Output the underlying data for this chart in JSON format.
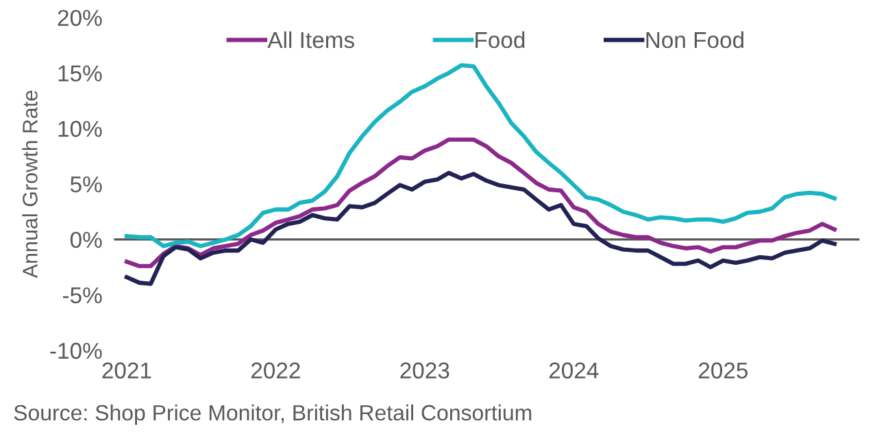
{
  "chart_data": {
    "type": "line",
    "ylabel": "Annual Growth Rate",
    "x": [
      "2021-01",
      "2021-02",
      "2021-03",
      "2021-04",
      "2021-05",
      "2021-06",
      "2021-07",
      "2021-08",
      "2021-09",
      "2021-10",
      "2021-11",
      "2021-12",
      "2022-01",
      "2022-02",
      "2022-03",
      "2022-04",
      "2022-05",
      "2022-06",
      "2022-07",
      "2022-08",
      "2022-09",
      "2022-10",
      "2022-11",
      "2022-12",
      "2023-01",
      "2023-02",
      "2023-03",
      "2023-04",
      "2023-05",
      "2023-06",
      "2023-07",
      "2023-08",
      "2023-09",
      "2023-10",
      "2023-11",
      "2023-12",
      "2024-01",
      "2024-02",
      "2024-03",
      "2024-04",
      "2024-05",
      "2024-06",
      "2024-07",
      "2024-08",
      "2024-09",
      "2024-10",
      "2024-11",
      "2024-12",
      "2025-01",
      "2025-02",
      "2025-03",
      "2025-04",
      "2025-05",
      "2025-06",
      "2025-07",
      "2025-08",
      "2025-09",
      "2025-10"
    ],
    "series": [
      {
        "name": "All Items",
        "color": "#8b2a8b",
        "values": [
          -2.0,
          -2.4,
          -2.4,
          -1.3,
          -0.6,
          -0.8,
          -1.4,
          -0.8,
          -0.6,
          -0.4,
          0.4,
          0.8,
          1.5,
          1.8,
          2.1,
          2.7,
          2.8,
          3.1,
          4.4,
          5.1,
          5.7,
          6.6,
          7.4,
          7.3,
          8.0,
          8.4,
          9.0,
          9.0,
          9.0,
          8.4,
          7.5,
          6.9,
          6.0,
          5.1,
          4.5,
          4.4,
          2.9,
          2.5,
          1.4,
          0.7,
          0.4,
          0.2,
          0.2,
          -0.3,
          -0.6,
          -0.8,
          -0.7,
          -1.1,
          -0.7,
          -0.7,
          -0.4,
          -0.1,
          -0.1,
          0.3,
          0.6,
          0.8,
          1.4,
          0.9
        ]
      },
      {
        "name": "Food",
        "color": "#1ab5c0",
        "values": [
          0.3,
          0.2,
          0.2,
          -0.6,
          -0.3,
          -0.2,
          -0.6,
          -0.3,
          0.0,
          0.4,
          1.2,
          2.4,
          2.7,
          2.7,
          3.3,
          3.5,
          4.3,
          5.7,
          7.8,
          9.3,
          10.6,
          11.6,
          12.4,
          13.3,
          13.8,
          14.5,
          15.0,
          15.7,
          15.6,
          13.8,
          12.3,
          10.5,
          9.3,
          7.9,
          6.9,
          6.0,
          4.9,
          3.8,
          3.6,
          3.1,
          2.5,
          2.2,
          1.8,
          2.0,
          1.9,
          1.7,
          1.8,
          1.8,
          1.6,
          1.9,
          2.4,
          2.5,
          2.8,
          3.8,
          4.1,
          4.2,
          4.1,
          3.7
        ]
      },
      {
        "name": "Non Food",
        "color": "#222255",
        "values": [
          -3.4,
          -3.9,
          -4.0,
          -1.5,
          -0.7,
          -0.9,
          -1.7,
          -1.2,
          -1.0,
          -1.0,
          0.0,
          -0.3,
          0.9,
          1.4,
          1.6,
          2.2,
          1.9,
          1.8,
          3.0,
          2.9,
          3.3,
          4.1,
          4.9,
          4.5,
          5.2,
          5.4,
          6.0,
          5.5,
          5.9,
          5.3,
          4.9,
          4.7,
          4.5,
          3.6,
          2.7,
          3.1,
          1.4,
          1.2,
          0.1,
          -0.6,
          -0.9,
          -1.0,
          -1.0,
          -1.6,
          -2.2,
          -2.2,
          -1.9,
          -2.5,
          -1.9,
          -2.1,
          -1.9,
          -1.6,
          -1.7,
          -1.2,
          -1.0,
          -0.8,
          -0.1,
          -0.4
        ]
      }
    ],
    "xlim": [
      "2020-12",
      "2025-12"
    ],
    "xticks": [
      {
        "value": "2021-01",
        "label": "2021"
      },
      {
        "value": "2022-01",
        "label": "2022"
      },
      {
        "value": "2023-01",
        "label": "2023"
      },
      {
        "value": "2024-01",
        "label": "2024"
      },
      {
        "value": "2025-01",
        "label": "2025"
      }
    ],
    "ylim": [
      -10,
      20
    ],
    "yticks": [
      {
        "value": -10,
        "label": "-10%"
      },
      {
        "value": -5,
        "label": "-5%"
      },
      {
        "value": 0,
        "label": "0%"
      },
      {
        "value": 5,
        "label": "5%"
      },
      {
        "value": 10,
        "label": "10%"
      },
      {
        "value": 15,
        "label": "15%"
      },
      {
        "value": 20,
        "label": "20%"
      }
    ],
    "ref_lines": [
      {
        "axis": "y",
        "value": 0,
        "color": "#595959"
      }
    ],
    "legend": "top",
    "grid": false,
    "marker": "none",
    "line_style": "solid",
    "annotations": [
      "Source: Shop Price Monitor, British Retail Consortium"
    ]
  }
}
